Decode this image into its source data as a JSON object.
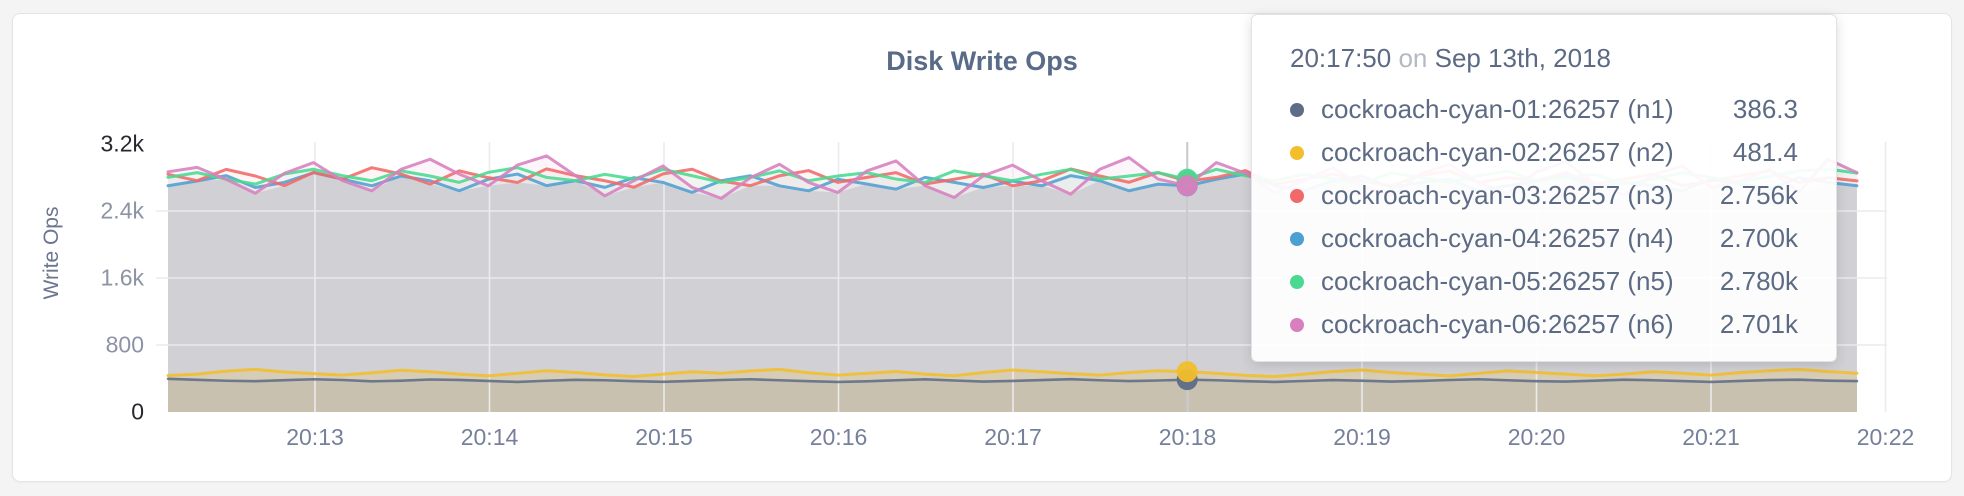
{
  "card": {
    "background": "#ffffff"
  },
  "chart_data": {
    "type": "line",
    "title": "Disk Write Ops",
    "xlabel": "",
    "ylabel": "Write Ops",
    "ylim": [
      0,
      3200
    ],
    "grid": true,
    "legend_position": "tooltip-overlay",
    "y_ticks": [
      {
        "label": "0",
        "value": 0,
        "emphasis": true
      },
      {
        "label": "800",
        "value": 800,
        "emphasis": false
      },
      {
        "label": "1.6k",
        "value": 1600,
        "emphasis": false
      },
      {
        "label": "2.4k",
        "value": 2400,
        "emphasis": false
      },
      {
        "label": "3.2k",
        "value": 3200,
        "emphasis": true
      }
    ],
    "x_ticks": [
      "20:13",
      "20:14",
      "20:15",
      "20:16",
      "20:17",
      "20:18",
      "20:19",
      "20:20",
      "20:21",
      "20:22"
    ],
    "x_start_time": "20:12:10",
    "x_interval_seconds": 10,
    "series": [
      {
        "name": "cockroach-cyan-01:26257 (n1)",
        "color": "#5F6C87",
        "group": "low",
        "values": [
          396,
          384,
          373,
          368,
          380,
          391,
          382,
          366,
          374,
          388,
          383,
          371,
          359,
          373,
          384,
          379,
          368,
          361,
          371,
          382,
          391,
          379,
          368,
          359,
          366,
          379,
          390,
          376,
          364,
          371,
          381,
          392,
          379,
          369,
          376,
          386.3,
          379,
          368,
          359,
          370,
          381,
          374,
          363,
          371,
          382,
          391,
          379,
          368,
          363,
          374,
          386,
          379,
          369,
          359,
          371,
          381,
          386,
          374,
          369
        ]
      },
      {
        "name": "cockroach-cyan-02:26257 (n2)",
        "color": "#F2BE2C",
        "group": "low",
        "values": [
          436,
          452,
          488,
          509,
          478,
          458,
          441,
          469,
          498,
          481,
          452,
          432,
          462,
          492,
          472,
          443,
          424,
          452,
          481,
          462,
          491,
          509,
          469,
          441,
          462,
          483,
          452,
          433,
          472,
          501,
          481,
          458,
          441,
          472,
          492,
          481.4,
          462,
          438,
          424,
          452,
          483,
          502,
          472,
          452,
          431,
          462,
          491,
          472,
          452,
          433,
          452,
          481,
          462,
          441,
          472,
          492,
          509,
          483,
          462
        ]
      },
      {
        "name": "cockroach-cyan-03:26257 (n3)",
        "color": "#F16969",
        "group": "high",
        "values": [
          2838,
          2762,
          2897,
          2818,
          2703,
          2861,
          2781,
          2917,
          2842,
          2721,
          2879,
          2798,
          2741,
          2903,
          2822,
          2761,
          2684,
          2843,
          2898,
          2757,
          2703,
          2821,
          2883,
          2742,
          2801,
          2858,
          2722,
          2779,
          2841,
          2701,
          2762,
          2902,
          2818,
          2743,
          2859,
          2756,
          2801,
          2882,
          2719,
          2778,
          2843,
          2761,
          2702,
          2822,
          2879,
          2741,
          2798,
          2762,
          2861,
          2721,
          2781,
          2838,
          2703,
          2759,
          2821,
          2883,
          2742,
          2798,
          2760
        ]
      },
      {
        "name": "cockroach-cyan-04:26257 (n4)",
        "color": "#4E9FD1",
        "group": "high",
        "values": [
          2701,
          2758,
          2822,
          2681,
          2742,
          2858,
          2779,
          2701,
          2818,
          2761,
          2642,
          2779,
          2841,
          2703,
          2762,
          2682,
          2798,
          2741,
          2622,
          2761,
          2821,
          2701,
          2641,
          2779,
          2722,
          2661,
          2801,
          2742,
          2681,
          2758,
          2701,
          2822,
          2761,
          2642,
          2721,
          2700,
          2779,
          2841,
          2701,
          2641,
          2761,
          2818,
          2681,
          2742,
          2779,
          2641,
          2703,
          2758,
          2821,
          2681,
          2741,
          2701,
          2642,
          2779,
          2721,
          2661,
          2798,
          2742,
          2701
        ]
      },
      {
        "name": "cockroach-cyan-05:26257 (n5)",
        "color": "#49D990",
        "group": "high",
        "values": [
          2801,
          2858,
          2781,
          2722,
          2842,
          2898,
          2821,
          2761,
          2879,
          2818,
          2742,
          2861,
          2918,
          2801,
          2762,
          2838,
          2781,
          2898,
          2821,
          2742,
          2801,
          2879,
          2761,
          2818,
          2858,
          2781,
          2742,
          2879,
          2821,
          2761,
          2838,
          2898,
          2781,
          2818,
          2858,
          2780,
          2898,
          2821,
          2762,
          2838,
          2781,
          2722,
          2858,
          2801,
          2742,
          2821,
          2879,
          2761,
          2801,
          2838,
          2722,
          2781,
          2858,
          2801,
          2742,
          2818,
          2879,
          2901,
          2852
        ]
      },
      {
        "name": "cockroach-cyan-06:26257 (n6)",
        "color": "#D77FBF",
        "group": "high",
        "values": [
          2868,
          2921,
          2778,
          2612,
          2851,
          2978,
          2761,
          2641,
          2898,
          3018,
          2841,
          2701,
          2948,
          3058,
          2821,
          2581,
          2762,
          2938,
          2681,
          2551,
          2798,
          2958,
          2741,
          2621,
          2878,
          2998,
          2701,
          2561,
          2821,
          2948,
          2761,
          2601,
          2898,
          3038,
          2781,
          2701,
          2978,
          2851,
          2621,
          2762,
          2918,
          2701,
          2581,
          2841,
          2958,
          2741,
          2611,
          2868,
          2988,
          2721,
          2591,
          2831,
          2938,
          2681,
          2761,
          2898,
          2621,
          3018,
          2858
        ]
      }
    ]
  },
  "tooltip": {
    "time": "20:17:50",
    "conjunction": "on",
    "date": "Sep 13th, 2018",
    "hover_index": 35,
    "rows": [
      {
        "label": "cockroach-cyan-01:26257 (n1)",
        "value": "386.3",
        "color": "#5F6C87"
      },
      {
        "label": "cockroach-cyan-02:26257 (n2)",
        "value": "481.4",
        "color": "#F2BE2C"
      },
      {
        "label": "cockroach-cyan-03:26257 (n3)",
        "value": "2.756k",
        "color": "#F16969"
      },
      {
        "label": "cockroach-cyan-04:26257 (n4)",
        "value": "2.700k",
        "color": "#4E9FD1"
      },
      {
        "label": "cockroach-cyan-05:26257 (n5)",
        "value": "2.780k",
        "color": "#49D990"
      },
      {
        "label": "cockroach-cyan-06:26257 (n6)",
        "value": "2.701k",
        "color": "#D77FBF"
      }
    ]
  }
}
